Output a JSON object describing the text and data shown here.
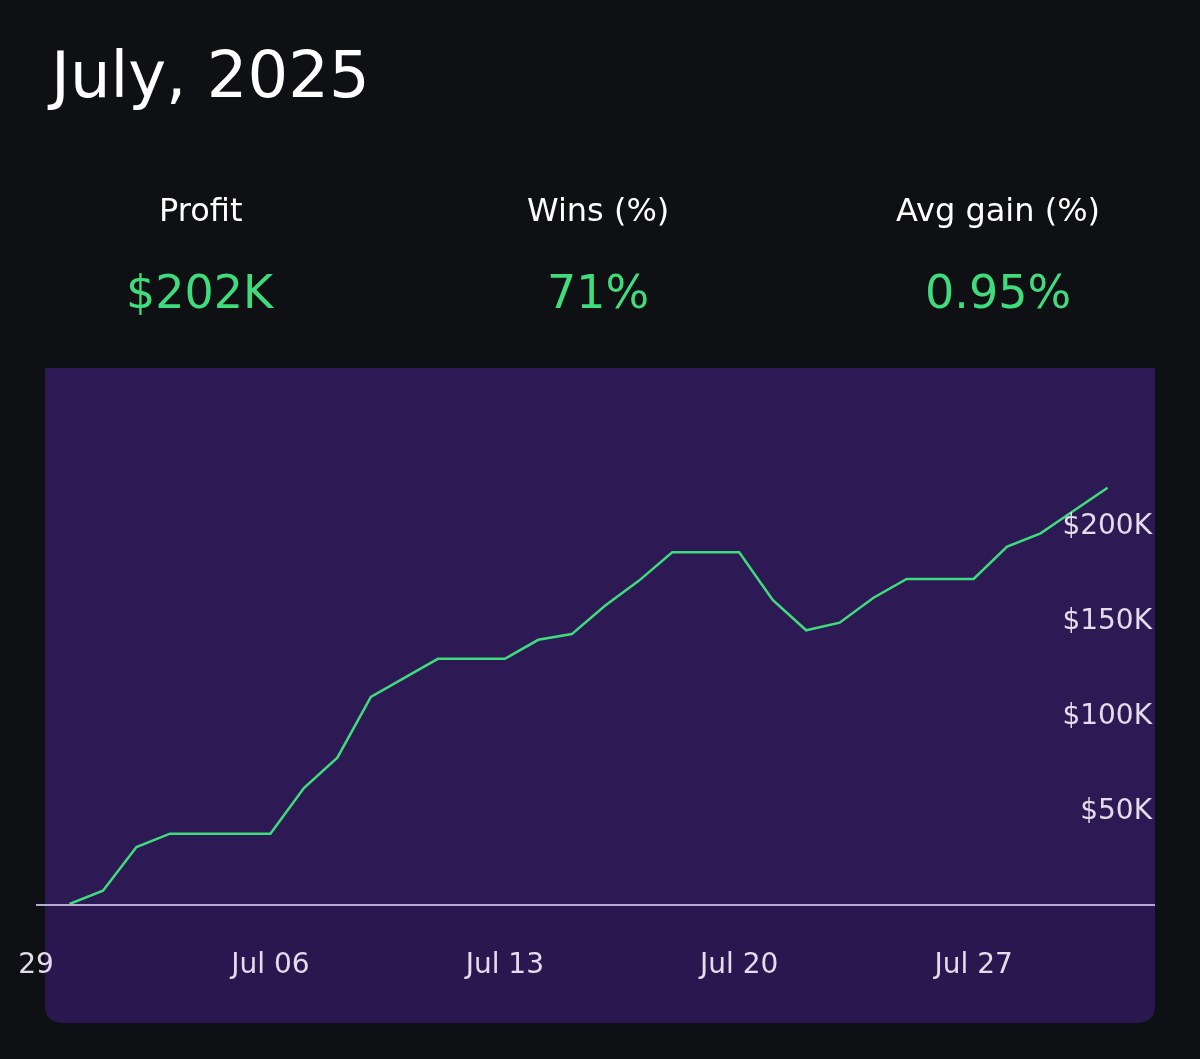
{
  "chart_data": {
    "type": "line",
    "title": "July, 2025",
    "annotations": [
      "Profit",
      "$202K",
      "Wins (%)",
      "71%",
      "Avg gain (%)",
      "0.95%"
    ],
    "x": [
      "2025-06-30",
      "2025-07-01",
      "2025-07-02",
      "2025-07-03",
      "2025-07-04",
      "2025-07-05",
      "2025-07-06",
      "2025-07-07",
      "2025-07-08",
      "2025-07-09",
      "2025-07-10",
      "2025-07-11",
      "2025-07-12",
      "2025-07-13",
      "2025-07-14",
      "2025-07-15",
      "2025-07-16",
      "2025-07-17",
      "2025-07-18",
      "2025-07-19",
      "2025-07-20",
      "2025-07-21",
      "2025-07-22",
      "2025-07-23",
      "2025-07-24",
      "2025-07-25",
      "2025-07-26",
      "2025-07-27",
      "2025-07-28",
      "2025-07-29",
      "2025-07-30",
      "2025-07-31"
    ],
    "series": [
      {
        "color": "#3fdc7e",
        "values": [
          0,
          7,
          30,
          37,
          37,
          37,
          37,
          61,
          77,
          109,
          119,
          129,
          129,
          129,
          139,
          142,
          157,
          170,
          185,
          185,
          185,
          160,
          144,
          148,
          161,
          171,
          171,
          171,
          188,
          195,
          207,
          219
        ]
      }
    ],
    "xlim": [
      "2025-06-29",
      "2025-08-01T10:00"
    ],
    "xticks": [
      {
        "value": "2025-06-29",
        "label": "29"
      },
      {
        "value": "2025-07-06",
        "label": "Jul 06"
      },
      {
        "value": "2025-07-13",
        "label": "Jul 13"
      },
      {
        "value": "2025-07-20",
        "label": "Jul 20"
      },
      {
        "value": "2025-07-27",
        "label": "Jul 27"
      }
    ],
    "ylim": [
      0,
      282
    ],
    "yticks": [
      {
        "value": 50,
        "label": "$50K"
      },
      {
        "value": 100,
        "label": "$100K"
      },
      {
        "value": 150,
        "label": "$150K"
      },
      {
        "value": 200,
        "label": "$200K"
      }
    ]
  }
}
